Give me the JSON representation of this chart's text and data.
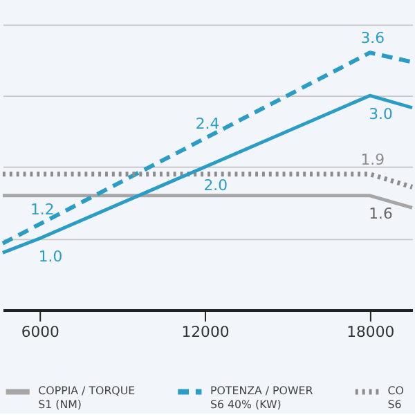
{
  "chart_data": {
    "type": "line",
    "series": [
      {
        "name": "COPPIA / TORQUE\nS1 (NM)",
        "color": "#a6a6a6",
        "line_style": "solid",
        "x": [
          4660,
          18000,
          19540
        ],
        "values": [
          1.6,
          1.6,
          1.43
        ],
        "value_labels": [
          null,
          "1.6",
          null
        ]
      },
      {
        "name": "POTENZA / POWER\nS6 40% (KW)",
        "color": "#2b9cc4",
        "line_style": "dashed",
        "x": [
          4660,
          6000,
          12000,
          18000,
          19540
        ],
        "values": [
          0.93,
          1.2,
          2.4,
          3.6,
          3.47
        ],
        "value_labels": [
          null,
          "1.2",
          "2.4",
          "3.6",
          null
        ]
      },
      {
        "name": "CO\nS6",
        "color": "#8c8c8c",
        "line_style": "dotted",
        "x": [
          4660,
          18000,
          19540
        ],
        "values": [
          1.9,
          1.9,
          1.72
        ],
        "value_labels": [
          null,
          "1.9",
          null
        ]
      },
      {
        "color": "#2b9cc4",
        "line_style": "solid",
        "x": [
          4660,
          6000,
          12000,
          18000,
          19540
        ],
        "values": [
          0.8,
          1.0,
          2.0,
          3.0,
          2.83
        ],
        "value_labels": [
          null,
          "1.0",
          "2.0",
          "3.0",
          null
        ]
      }
    ],
    "xlim": [
      4660,
      19540
    ],
    "xticks": [
      6000,
      12000,
      18000
    ],
    "ylim": [
      0,
      4.3
    ],
    "yticks": [
      {
        "value": 1,
        "label": null
      },
      {
        "value": 2,
        "label": null
      },
      {
        "value": 3,
        "label": null
      },
      {
        "value": 4,
        "label": null
      }
    ],
    "grid": "y",
    "tick_labels": "x",
    "legend": "bottom"
  }
}
